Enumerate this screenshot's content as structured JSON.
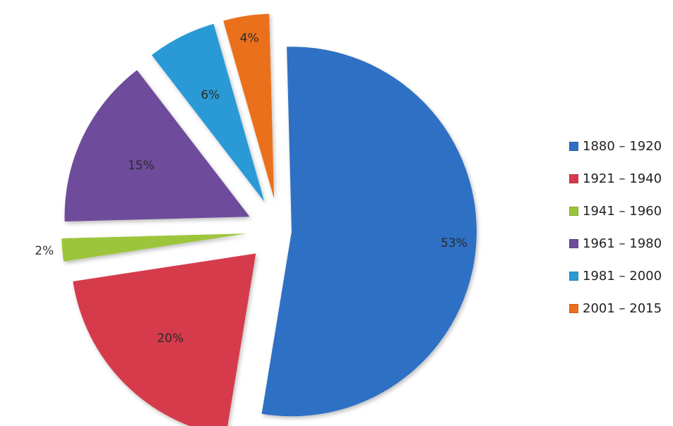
{
  "chart_data": {
    "type": "pie",
    "title": "",
    "categories": [
      "1880 – 1920",
      "1921 – 1940",
      "1941 – 1960",
      "1961 – 1980",
      "1981 – 2000",
      "2001 – 2015"
    ],
    "values": [
      53,
      20,
      2,
      15,
      6,
      4
    ],
    "data_labels": [
      "53%",
      "20%",
      "2%",
      "15%",
      "6%",
      "4%"
    ],
    "colors": [
      "#2e6fc4",
      "#d63a4c",
      "#9dc53b",
      "#6e4b9b",
      "#2a9ad6",
      "#ea6f1f"
    ],
    "exploded": true,
    "legend_position": "right"
  }
}
